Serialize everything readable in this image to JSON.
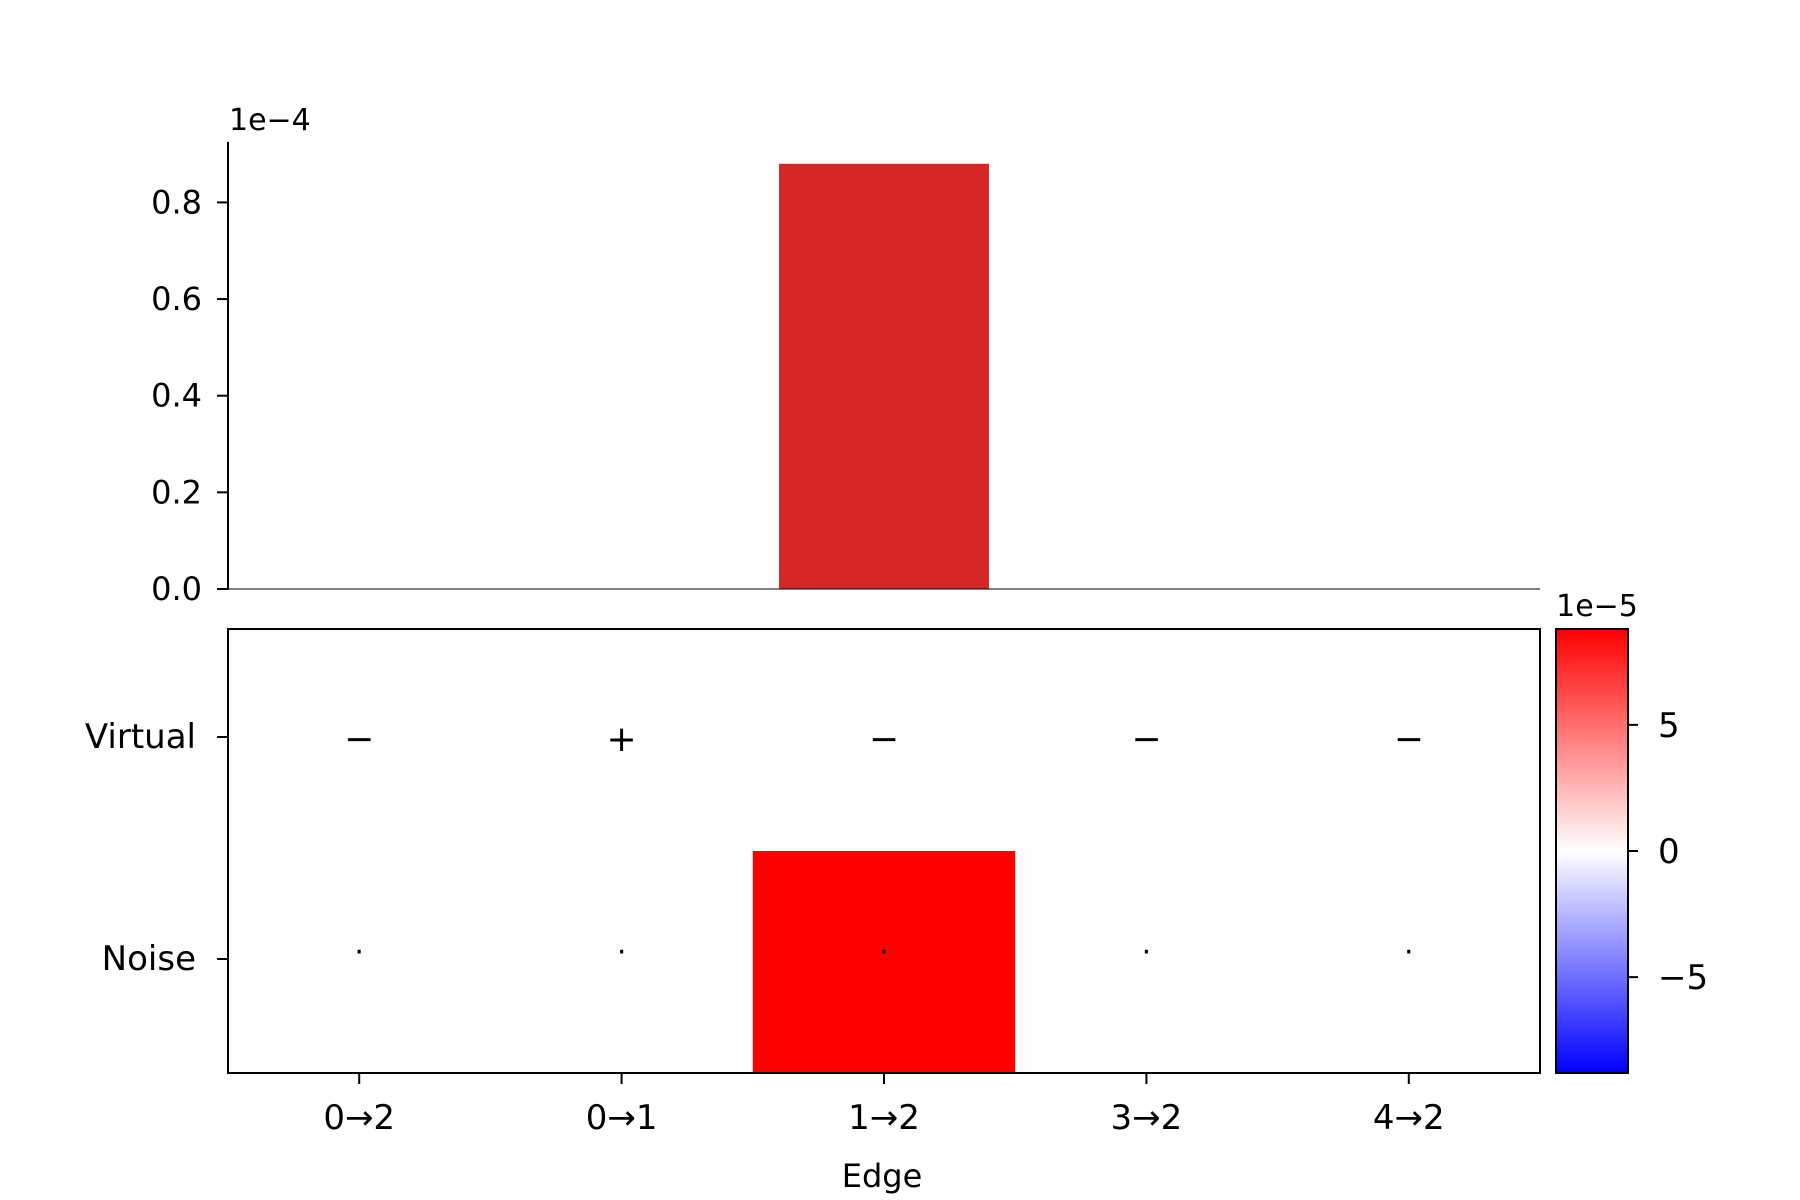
{
  "colors": {
    "bar": "#d62728",
    "heat_positive": "#ff0000",
    "heat_zero": "#fdfdfd",
    "heat_negative": "#0000ff",
    "axis": "#000000"
  },
  "chart_data": [
    {
      "type": "bar",
      "categories": [
        "0→2",
        "0→1",
        "1→2",
        "3→2",
        "4→2"
      ],
      "values": [
        0,
        0,
        0.88,
        0,
        0
      ],
      "scale_label": "1e−4",
      "ylim": [
        0,
        0.925
      ],
      "yticks": [
        0.0,
        0.2,
        0.4,
        0.6,
        0.8
      ],
      "ytick_labels": [
        "0.0",
        "0.2",
        "0.4",
        "0.6",
        "0.8"
      ],
      "grid": false
    },
    {
      "type": "heatmap",
      "xlabel": "Edge",
      "x_categories": [
        "0→2",
        "0→1",
        "1→2",
        "3→2",
        "4→2"
      ],
      "y_categories": [
        "Virtual",
        "Noise"
      ],
      "values": [
        [
          0,
          0,
          0,
          0,
          0
        ],
        [
          0,
          0,
          8.8,
          0,
          0
        ]
      ],
      "cell_text": [
        [
          "−",
          "+",
          "−",
          "−",
          "−"
        ],
        [
          "·",
          "·",
          "·",
          "·",
          "·"
        ]
      ],
      "colorbar": {
        "scale_label": "1e−5",
        "range": [
          -8.8,
          8.8
        ],
        "ticks": [
          -5,
          0,
          5
        ],
        "tick_labels": [
          "−5",
          "0",
          "5"
        ],
        "colormap": "bwr"
      }
    }
  ]
}
